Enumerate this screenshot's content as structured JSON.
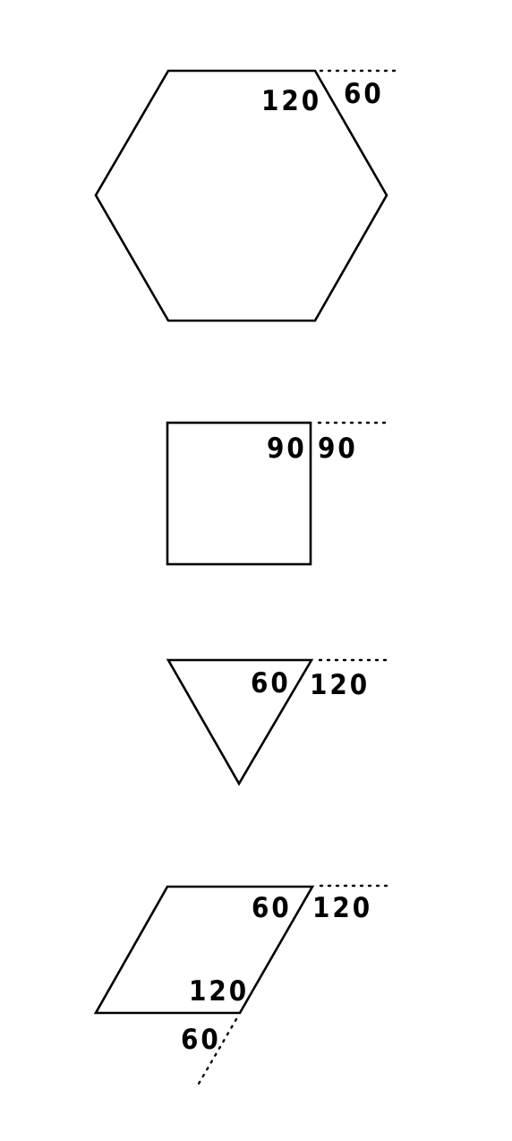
{
  "figures": [
    {
      "name": "hexagon",
      "interior_angle": "120",
      "exterior_angle": "60"
    },
    {
      "name": "square",
      "interior_angle": "90",
      "exterior_angle": "90"
    },
    {
      "name": "triangle",
      "interior_angle": "60",
      "exterior_angle": "120"
    },
    {
      "name": "rhombus",
      "top_interior_angle": "60",
      "top_exterior_angle": "120",
      "bottom_interior_angle": "120",
      "bottom_exterior_angle": "60"
    }
  ]
}
